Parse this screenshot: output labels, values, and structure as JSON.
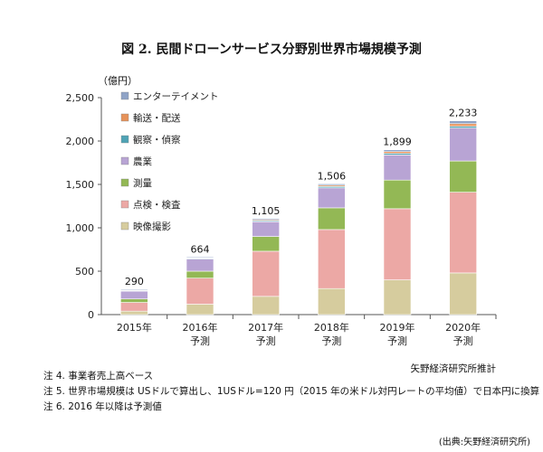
{
  "title": "図 2. 民間ドローンサービス分野別世界市場規模予測",
  "unit_label": "（億円）",
  "credit": "矢野経済研究所推計",
  "notes": [
    "注 4. 事業者売上高ベース",
    "注 5. 世界市場規模は USドルで算出し、1USドル=120 円（2015 年の米ドル対円レートの平均値）で日本円に換算",
    "注 6. 2016 年以降は予測値"
  ],
  "source": "(出典:矢野経済研究所)",
  "chart_data": {
    "type": "bar",
    "stacked": true,
    "categories": [
      [
        "2015年"
      ],
      [
        "2016年",
        "予測"
      ],
      [
        "2017年",
        "予測"
      ],
      [
        "2018年",
        "予測"
      ],
      [
        "2019年",
        "予測"
      ],
      [
        "2020年",
        "予測"
      ]
    ],
    "ylim": [
      0,
      2500
    ],
    "yticks": [
      0,
      500,
      1000,
      1500,
      2000,
      2500
    ],
    "ytick_labels": [
      "0",
      "500",
      "1,000",
      "1,500",
      "2,000",
      "2,500"
    ],
    "totals": [
      "290",
      "664",
      "1,105",
      "1,506",
      "1,899",
      "2,233"
    ],
    "grid": false,
    "legend_placement": "top-left",
    "series": [
      {
        "name": "映像撮影",
        "color": "#d6cc9e",
        "values": [
          40,
          120,
          210,
          300,
          400,
          480
        ]
      },
      {
        "name": "点検・検査",
        "color": "#eca8a5",
        "values": [
          100,
          300,
          520,
          680,
          820,
          930
        ]
      },
      {
        "name": "測量",
        "color": "#93b855",
        "values": [
          40,
          80,
          170,
          250,
          330,
          360
        ]
      },
      {
        "name": "農業",
        "color": "#b8a4d4",
        "values": [
          90,
          140,
          170,
          230,
          290,
          380
        ]
      },
      {
        "name": "観察・偵察",
        "color": "#4fa3b5",
        "values": [
          5,
          8,
          12,
          16,
          18,
          20
        ]
      },
      {
        "name": "輸送・配送",
        "color": "#e6925a",
        "values": [
          5,
          6,
          10,
          15,
          20,
          30
        ]
      },
      {
        "name": "エンターテイメント",
        "color": "#8fa3c6",
        "values": [
          10,
          10,
          13,
          15,
          21,
          33
        ]
      }
    ]
  }
}
